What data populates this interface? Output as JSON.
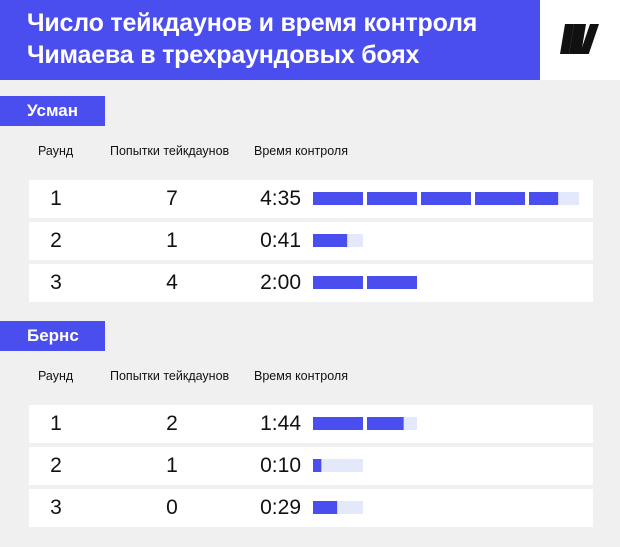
{
  "title": {
    "line1": "Число тейкдаунов и время контроля",
    "line2": "Чимаева в трехраундовых боях"
  },
  "logo": {
    "icon": "publisher-logo-icon"
  },
  "colors": {
    "accent": "#4b4eef",
    "bar_track": "#e3e8fb"
  },
  "table_headers": {
    "round": "Раунд",
    "takedowns": "Попытки тейкдаунов",
    "control": "Время контроля"
  },
  "chart_data": [
    {
      "type": "table",
      "title": "Усман",
      "columns": [
        "Раунд",
        "Попытки тейкдаунов",
        "Время контроля"
      ],
      "rows": [
        {
          "round": "1",
          "takedowns": "7",
          "control": "4:35",
          "control_seconds": 275
        },
        {
          "round": "2",
          "takedowns": "1",
          "control": "0:41",
          "control_seconds": 41
        },
        {
          "round": "3",
          "takedowns": "4",
          "control": "2:00",
          "control_seconds": 120
        }
      ],
      "bar_unit_seconds": 60,
      "bar_max_seconds": 300
    },
    {
      "type": "table",
      "title": "Бернс",
      "columns": [
        "Раунд",
        "Попытки тейкдаунов",
        "Время контроля"
      ],
      "rows": [
        {
          "round": "1",
          "takedowns": "2",
          "control": "1:44",
          "control_seconds": 104
        },
        {
          "round": "2",
          "takedowns": "1",
          "control": "0:10",
          "control_seconds": 10
        },
        {
          "round": "3",
          "takedowns": "0",
          "control": "0:29",
          "control_seconds": 29
        }
      ],
      "bar_unit_seconds": 60,
      "bar_max_seconds": 300
    }
  ]
}
